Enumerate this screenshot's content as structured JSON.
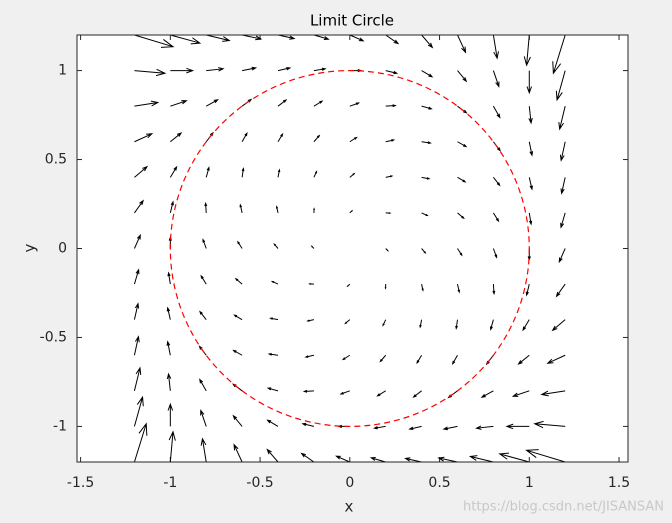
{
  "chart_data": {
    "type": "quiver",
    "title": "Limit Circle",
    "xlabel": "x",
    "ylabel": "y",
    "watermark": "https://blog.csdn.net/JISANSAN",
    "xlim": [
      -1.52,
      1.55
    ],
    "ylim": [
      -1.2,
      1.2
    ],
    "xticks": [
      -1.5,
      -1,
      -0.5,
      0,
      0.5,
      1,
      1.5
    ],
    "yticks": [
      -1,
      -0.5,
      0,
      0.5,
      1
    ],
    "grid": false,
    "color": "#000000",
    "circle": {
      "radius": 1,
      "color": "#ff0000",
      "style": "dashed"
    },
    "x": [
      -1.2,
      -1,
      -0.8,
      -0.6,
      -0.4,
      -0.2,
      0,
      0.2,
      0.4,
      0.6,
      0.8,
      1,
      1.2
    ],
    "y": [
      -1.2,
      -1,
      -0.8,
      -0.6,
      -0.4,
      -0.2,
      0,
      0.2,
      0.4,
      0.6,
      0.8,
      1,
      1.2
    ],
    "u": [
      [
        1.056,
        0.24,
        -0.336,
        -0.72,
        -0.96,
        -1.104,
        -1.2,
        -1.296,
        -1.44,
        -1.68,
        -2.064,
        -2.64,
        -3.456
      ],
      [
        0.728,
        0,
        -0.488,
        -0.784,
        -0.936,
        -0.992,
        -1,
        -1.008,
        -1.064,
        -1.216,
        -1.512,
        -2,
        -2.728
      ],
      [
        0.496,
        -0.16,
        -0.576,
        -0.8,
        -0.88,
        -0.864,
        -0.8,
        -0.736,
        -0.72,
        -0.8,
        -1.024,
        -1.44,
        -2.096
      ],
      [
        0.36,
        -0.24,
        -0.6,
        -0.768,
        -0.792,
        -0.72,
        -0.6,
        -0.48,
        -0.408,
        -0.432,
        -0.6,
        -0.96,
        -1.56
      ],
      [
        0.32,
        -0.24,
        -0.56,
        -0.688,
        -0.672,
        -0.56,
        -0.4,
        -0.24,
        -0.128,
        -0.112,
        -0.24,
        -0.56,
        -1.12
      ],
      [
        0.376,
        -0.16,
        -0.456,
        -0.56,
        -0.52,
        -0.384,
        -0.2,
        -0.016,
        0.12,
        0.16,
        0.056,
        -0.24,
        -0.776
      ],
      [
        0.528,
        0,
        -0.288,
        -0.384,
        -0.336,
        -0.192,
        0,
        0.192,
        0.336,
        0.384,
        0.288,
        0,
        -0.528
      ],
      [
        0.776,
        0.24,
        -0.056,
        -0.16,
        -0.12,
        0.016,
        0.2,
        0.384,
        0.52,
        0.56,
        0.456,
        0.16,
        -0.376
      ],
      [
        1.12,
        0.56,
        0.24,
        0.112,
        0.128,
        0.24,
        0.4,
        0.56,
        0.672,
        0.688,
        0.56,
        0.24,
        -0.32
      ],
      [
        1.56,
        0.96,
        0.6,
        0.432,
        0.408,
        0.48,
        0.6,
        0.72,
        0.792,
        0.768,
        0.6,
        0.24,
        -0.36
      ],
      [
        2.096,
        1.44,
        1.024,
        0.8,
        0.72,
        0.736,
        0.8,
        0.864,
        0.88,
        0.8,
        0.576,
        0.16,
        -0.496
      ],
      [
        2.728,
        2,
        1.512,
        1.216,
        1.064,
        1.008,
        1,
        0.992,
        0.936,
        0.784,
        0.488,
        0,
        -0.728
      ],
      [
        3.456,
        2.64,
        2.064,
        1.68,
        1.44,
        1.296,
        1.2,
        1.104,
        0.96,
        0.72,
        0.336,
        -0.24,
        -1.056
      ]
    ],
    "v": [
      [
        3.456,
        2.728,
        2.096,
        1.56,
        1.12,
        0.776,
        0.528,
        0.376,
        0.32,
        0.36,
        0.496,
        0.728,
        1.056
      ],
      [
        2.64,
        2,
        1.44,
        0.96,
        0.56,
        0.24,
        0,
        -0.16,
        -0.24,
        -0.24,
        -0.16,
        0,
        0.24
      ],
      [
        2.064,
        1.512,
        1.024,
        0.6,
        0.24,
        -0.056,
        -0.288,
        -0.456,
        -0.56,
        -0.6,
        -0.576,
        -0.488,
        -0.336
      ],
      [
        1.68,
        1.216,
        0.8,
        0.432,
        0.112,
        -0.16,
        -0.384,
        -0.56,
        -0.688,
        -0.768,
        -0.8,
        -0.784,
        -0.72
      ],
      [
        1.44,
        1.064,
        0.72,
        0.408,
        0.128,
        -0.12,
        -0.336,
        -0.52,
        -0.672,
        -0.792,
        -0.88,
        -0.936,
        -0.96
      ],
      [
        1.296,
        1.008,
        0.736,
        0.48,
        0.24,
        0.016,
        -0.192,
        -0.384,
        -0.56,
        -0.72,
        -0.864,
        -0.992,
        -1.104
      ],
      [
        1.2,
        1,
        0.8,
        0.6,
        0.4,
        0.2,
        0,
        -0.2,
        -0.4,
        -0.6,
        -0.8,
        -1,
        -1.2
      ],
      [
        1.104,
        0.992,
        0.864,
        0.72,
        0.56,
        0.384,
        0.192,
        -0.016,
        -0.24,
        -0.48,
        -0.736,
        -1.008,
        -1.296
      ],
      [
        0.96,
        0.936,
        0.88,
        0.792,
        0.672,
        0.52,
        0.336,
        0.12,
        -0.128,
        -0.408,
        -0.72,
        -1.064,
        -1.44
      ],
      [
        0.72,
        0.784,
        0.8,
        0.768,
        0.688,
        0.56,
        0.384,
        0.16,
        -0.112,
        -0.432,
        -0.8,
        -1.216,
        -1.68
      ],
      [
        0.336,
        0.488,
        0.576,
        0.6,
        0.56,
        0.456,
        0.288,
        0.056,
        -0.24,
        -0.6,
        -1.024,
        -1.512,
        -2.064
      ],
      [
        -0.24,
        0,
        0.16,
        0.24,
        0.24,
        0.16,
        0,
        -0.24,
        -0.56,
        -0.96,
        -1.44,
        -2,
        -2.64
      ],
      [
        -1.056,
        -0.728,
        -0.496,
        -0.36,
        -0.32,
        -0.376,
        -0.528,
        -0.776,
        -1.12,
        -1.56,
        -2.096,
        -2.728,
        -3.456
      ]
    ]
  }
}
